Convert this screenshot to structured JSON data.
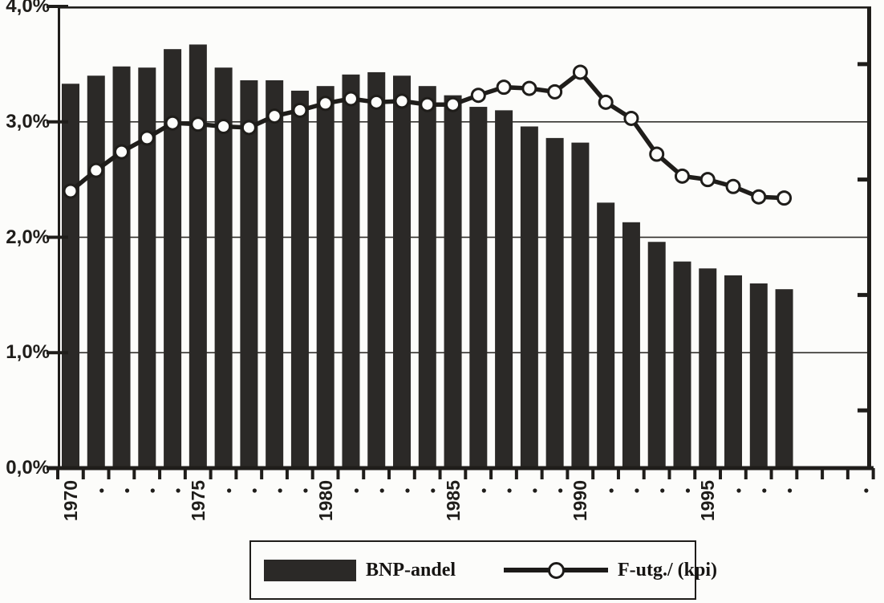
{
  "figure": {
    "background": "#fcfcfa",
    "ink": "#1f1d1a",
    "bar_color": "#2b2927",
    "marker_fill": "#fdfdfb",
    "title": ""
  },
  "y_axis": {
    "labels": [
      {
        "text": "4,0%",
        "value": 4.0
      },
      {
        "text": "3,0%",
        "value": 3.0
      },
      {
        "text": "2,0%",
        "value": 2.0
      },
      {
        "text": "1,0%",
        "value": 1.0
      },
      {
        "text": "0,0%",
        "value": 0.0
      }
    ],
    "minor_tick_step": 0.5
  },
  "x_axis": {
    "labeled_years": [
      "1970",
      "1975",
      "1980",
      "1985",
      "1990",
      "1995"
    ],
    "unlabeled_year_marker": "."
  },
  "legend": {
    "items": [
      {
        "swatch": "bar",
        "label": "BNP-andel"
      },
      {
        "swatch": "line-marker",
        "label": "F-utg./ (kpi)"
      }
    ]
  },
  "chart_data": {
    "type": "combo-bar-line",
    "title": "",
    "xlabel": "",
    "ylabel": "",
    "ylim": [
      0,
      4
    ],
    "y_tick_format": "percent with comma decimal",
    "grid": "horizontal",
    "gridlines_at": [
      1.0,
      2.0,
      3.0
    ],
    "legend_position": "bottom",
    "categories": [
      1970,
      1971,
      1972,
      1973,
      1974,
      1975,
      1976,
      1977,
      1978,
      1979,
      1980,
      1981,
      1982,
      1983,
      1984,
      1985,
      1986,
      1987,
      1988,
      1989,
      1990,
      1991,
      1992,
      1993,
      1994,
      1995,
      1996,
      1997,
      1998
    ],
    "series": [
      {
        "name": "BNP-andel",
        "type": "bar",
        "values": [
          3.33,
          3.4,
          3.48,
          3.47,
          3.63,
          3.67,
          3.47,
          3.36,
          3.36,
          3.27,
          3.31,
          3.41,
          3.43,
          3.4,
          3.31,
          3.23,
          3.13,
          3.1,
          2.96,
          2.86,
          2.82,
          2.3,
          2.13,
          1.96,
          1.79,
          1.73,
          1.67,
          1.6,
          1.55
        ]
      },
      {
        "name": "F-utg./ (kpi)",
        "type": "line",
        "marker": "open-circle",
        "values": [
          2.4,
          2.58,
          2.74,
          2.86,
          2.99,
          2.98,
          2.96,
          2.95,
          3.05,
          3.1,
          3.16,
          3.2,
          3.17,
          3.18,
          3.15,
          3.15,
          3.23,
          3.3,
          3.29,
          3.26,
          3.43,
          3.17,
          3.03,
          2.72,
          2.53,
          2.5,
          2.44,
          2.35,
          2.34
        ]
      }
    ]
  }
}
